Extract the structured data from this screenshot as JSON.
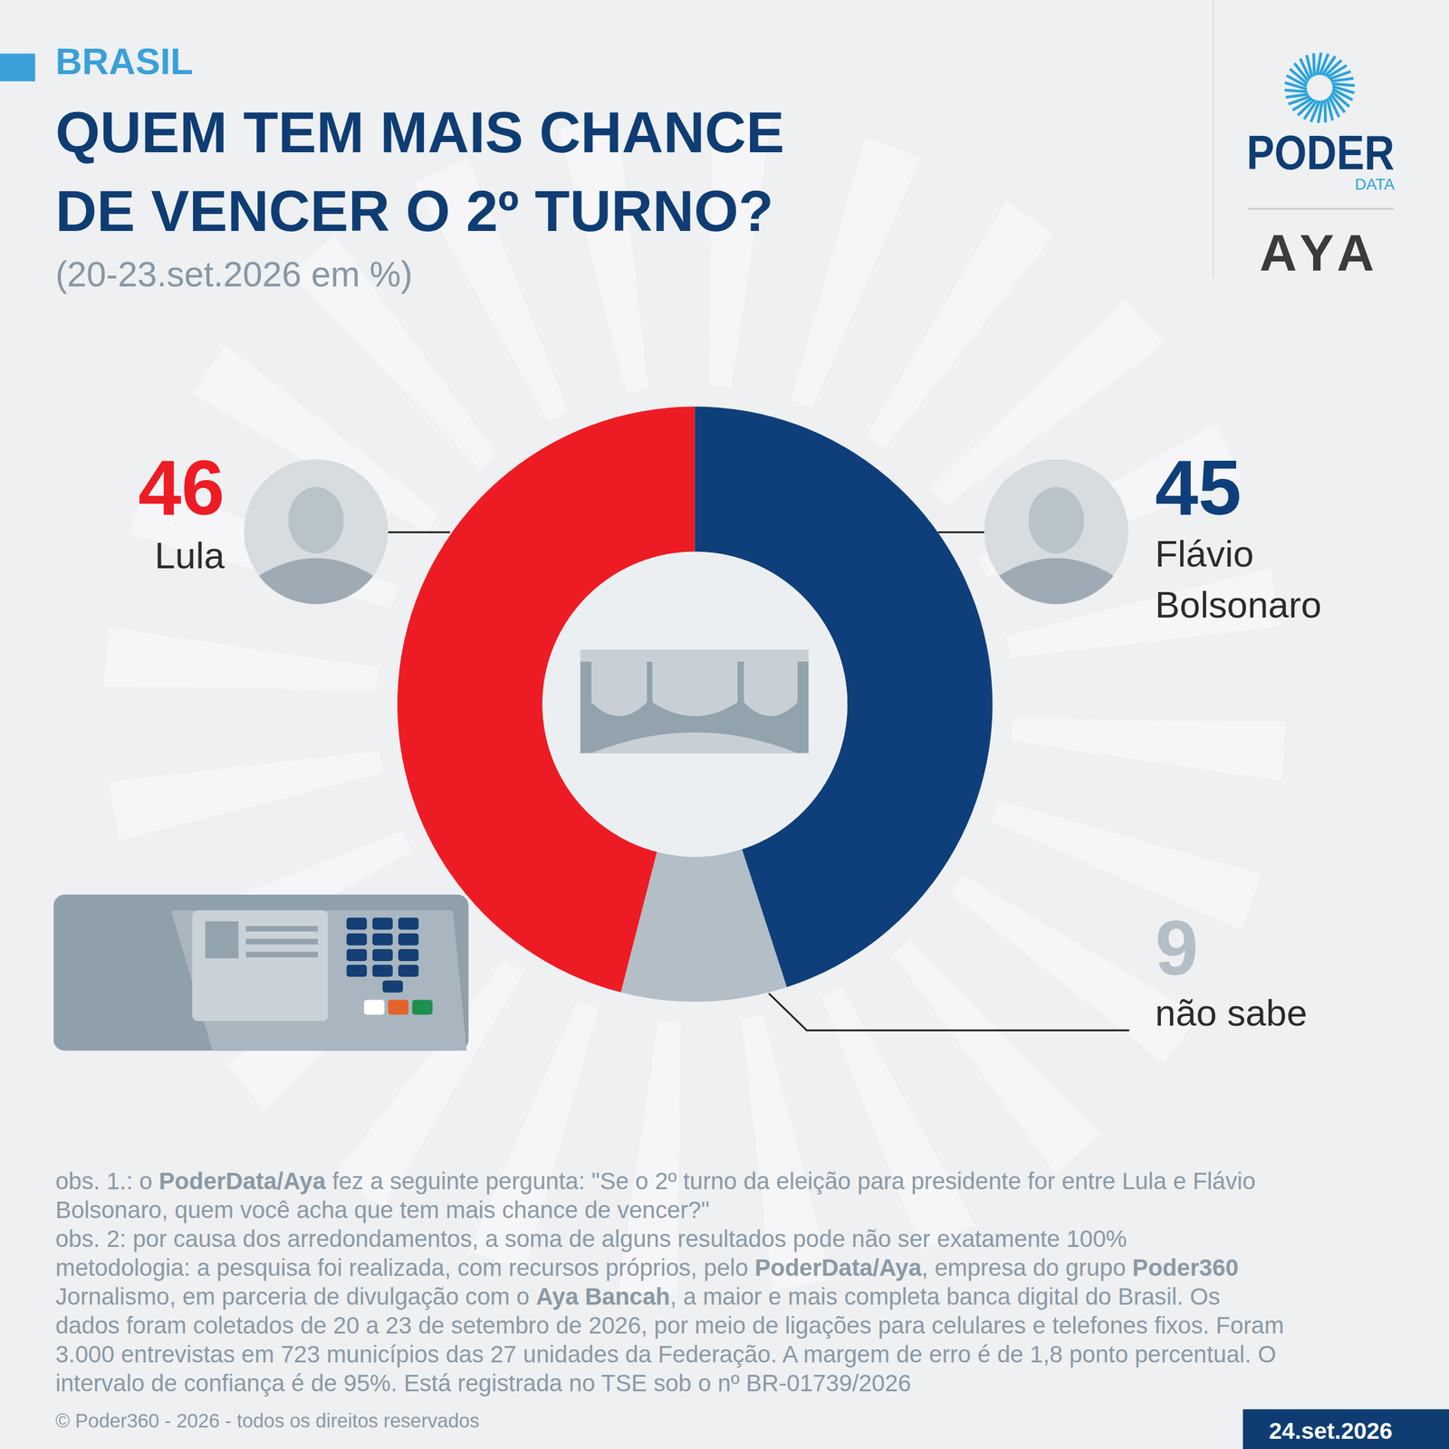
{
  "header": {
    "section": "BRASIL",
    "title": [
      "QUEM TEM MAIS CHANCE",
      "DE VENCER O 2º TURNO?"
    ],
    "subtitle": "(20-23.set.2026 em %)"
  },
  "logos": {
    "brand": "PODER",
    "brand_sub": "DATA",
    "partner": "AYA"
  },
  "chart_data": {
    "type": "donut",
    "categories": [
      "Lula",
      "Flávio Bolsonaro",
      "não sabe"
    ],
    "values": [
      46,
      45,
      9
    ],
    "colors": [
      "#ed1c24",
      "#0f3f7a",
      "#b3bec7"
    ],
    "data_labels": true
  },
  "notes": [
    [
      "obs. 1.: o ",
      "PoderData/Aya",
      " fez a seguinte pergunta: \"Se o 2º turno da eleição para presidente for entre Lula e Flávio"
    ],
    [
      "Bolsonaro, quem você acha que tem mais chance de vencer?\""
    ],
    [
      "obs. 2: por causa dos arredondamentos, a soma de alguns resultados pode não ser exatamente 100%"
    ],
    [
      "metodologia: a pesquisa foi realizada, com recursos próprios, pelo ",
      "PoderData/Aya",
      ", empresa do grupo ",
      "Poder360"
    ],
    [
      "Jornalismo, em parceria de divulgação com o ",
      "Aya Bancah",
      ", a maior e mais completa banca digital do Brasil. Os"
    ],
    [
      "dados foram coletados de 20 a 23 de setembro de 2026, por meio de ligações para celulares e telefones fixos. Foram"
    ],
    [
      "3.000 entrevistas em 723 municípios das 27 unidades da Federação. A margem de erro é de 1,8 ponto percentual. O"
    ],
    [
      "intervalo de confiança é de 95%. Está registrada no TSE sob o nº BR-01739/2026"
    ]
  ],
  "footer": {
    "copyright": "© Poder360 - 2026 - todos os direitos reservados",
    "date": "24.set.2026"
  }
}
